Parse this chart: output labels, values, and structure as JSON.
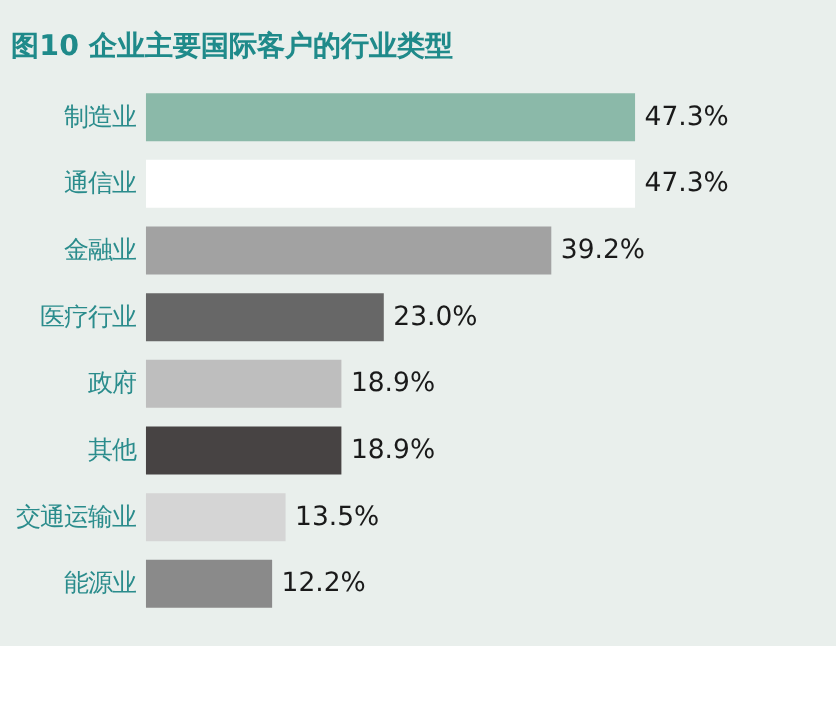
{
  "chart_data": {
    "type": "bar",
    "orientation": "horizontal",
    "title": "图10   企业主要国际客户的行业类型",
    "categories": [
      "制造业",
      "通信业",
      "金融业",
      "医疗行业",
      "政府",
      "其他",
      "交通运输业",
      "能源业"
    ],
    "values": [
      47.3,
      47.3,
      39.2,
      23.0,
      18.9,
      18.9,
      13.5,
      12.2
    ],
    "value_labels": [
      "47.3%",
      "47.3%",
      "39.2%",
      "23.0%",
      "18.9%",
      "18.9%",
      "13.5%",
      "12.2%"
    ],
    "colors": [
      "#8bb9a9",
      "#ffffff",
      "#a2a2a2",
      "#676767",
      "#bebebe",
      "#474343",
      "#d5d5d5",
      "#8a8a8a"
    ],
    "legend": false
  }
}
